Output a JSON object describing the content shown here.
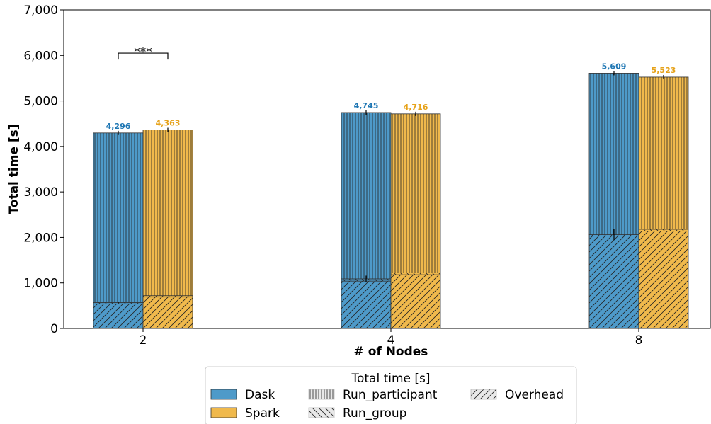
{
  "chart_data": {
    "type": "bar",
    "stacked": true,
    "categories": [
      "2",
      "4",
      "8"
    ],
    "xlabel": "# of Nodes",
    "ylabel": "Total time [s]",
    "ylim": [
      0,
      7000
    ],
    "yticks": [
      0,
      1000,
      2000,
      3000,
      4000,
      5000,
      6000,
      7000
    ],
    "ytick_labels": [
      "0",
      "1,000",
      "2,000",
      "3,000",
      "4,000",
      "5,000",
      "6,000",
      "7,000"
    ],
    "grid": false,
    "series": [
      {
        "name": "Dask",
        "color": "#4e9ac9",
        "label_color": "#1f77b4",
        "overhead": [
          540,
          1040,
          2030
        ],
        "run_group": [
          30,
          50,
          30
        ],
        "run_participant": [
          3726,
          3655,
          3549
        ],
        "totals": [
          4296,
          4745,
          5609
        ],
        "total_labels": [
          "4,296",
          "4,745",
          "5,609"
        ]
      },
      {
        "name": "Spark",
        "color": "#f0b94c",
        "label_color": "#e6a21a",
        "overhead": [
          690,
          1180,
          2140
        ],
        "run_group": [
          30,
          40,
          40
        ],
        "run_participant": [
          3643,
          3496,
          3343
        ],
        "totals": [
          4363,
          4716,
          5523
        ],
        "total_labels": [
          "4,363",
          "4,716",
          "5,523"
        ]
      }
    ],
    "significance": {
      "category_index": 0,
      "label": "***",
      "y": 6050
    },
    "legend": {
      "title": "Total time [s]",
      "placement": "bottom-center",
      "entries": [
        {
          "label": "Dask",
          "kind": "color",
          "color": "#4e9ac9"
        },
        {
          "label": "Spark",
          "kind": "color",
          "color": "#f0b94c"
        },
        {
          "label": "Run_participant",
          "kind": "hatch",
          "pattern": "vertical"
        },
        {
          "label": "Run_group",
          "kind": "hatch",
          "pattern": "backslash"
        },
        {
          "label": "Overhead",
          "kind": "hatch",
          "pattern": "slash"
        }
      ]
    }
  }
}
